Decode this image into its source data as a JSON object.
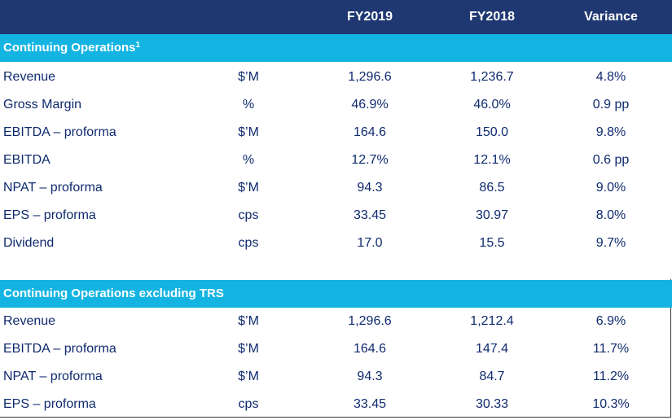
{
  "header": {
    "col1": "FY2019",
    "col2": "FY2018",
    "col3": "Variance"
  },
  "section1": {
    "title": "Continuing Operations",
    "title_sup": "1",
    "rows": [
      {
        "label": "Revenue",
        "unit": "$’M",
        "fy2019": "1,296.6",
        "fy2018": "1,236.7",
        "variance": "4.8%"
      },
      {
        "label": "Gross Margin",
        "unit": "%",
        "fy2019": "46.9%",
        "fy2018": "46.0%",
        "variance": "0.9 pp"
      },
      {
        "label": "EBITDA – proforma",
        "unit": "$’M",
        "fy2019": "164.6",
        "fy2018": "150.0",
        "variance": "9.8%"
      },
      {
        "label": "EBITDA",
        "unit": "%",
        "fy2019": "12.7%",
        "fy2018": "12.1%",
        "variance": "0.6 pp"
      },
      {
        "label": "NPAT – proforma",
        "unit": "$’M",
        "fy2019": "94.3",
        "fy2018": "86.5",
        "variance": "9.0%"
      },
      {
        "label": "EPS – proforma",
        "unit": "cps",
        "fy2019": "33.45",
        "fy2018": "30.97",
        "variance": "8.0%"
      },
      {
        "label": "Dividend",
        "unit": "cps",
        "fy2019": "17.0",
        "fy2018": "15.5",
        "variance": "9.7%"
      }
    ]
  },
  "section2": {
    "title": "Continuing Operations excluding TRS",
    "rows": [
      {
        "label": "Revenue",
        "unit": "$’M",
        "fy2019": "1,296.6",
        "fy2018": "1,212.4",
        "variance": "6.9%"
      },
      {
        "label": "EBITDA – proforma",
        "unit": "$’M",
        "fy2019": "164.6",
        "fy2018": "147.4",
        "variance": "11.7%"
      },
      {
        "label": "NPAT – proforma",
        "unit": "$’M",
        "fy2019": "94.3",
        "fy2018": "84.7",
        "variance": "11.2%"
      },
      {
        "label": "EPS – proforma",
        "unit": "cps",
        "fy2019": "33.45",
        "fy2018": "30.33",
        "variance": "10.3%"
      }
    ]
  }
}
